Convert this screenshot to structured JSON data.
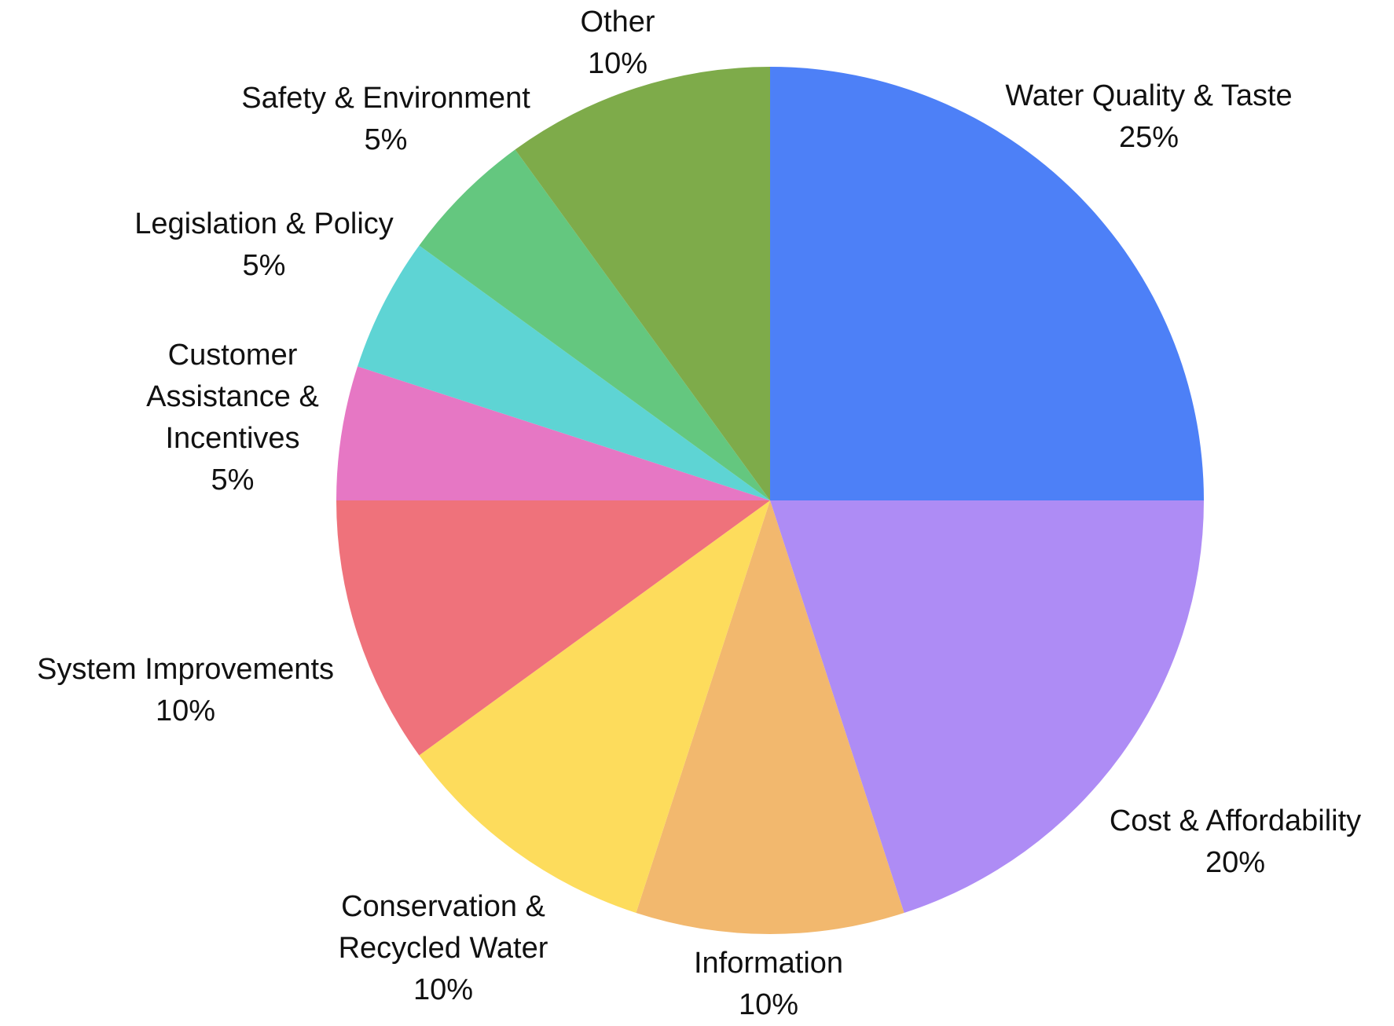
{
  "chart_data": {
    "type": "pie",
    "title": "",
    "start_angle_deg": 0,
    "direction": "clockwise",
    "slices": [
      {
        "label": "Water Quality & Taste",
        "label_lines": [
          "Water Quality & Taste"
        ],
        "value_label": "25%",
        "value": 25,
        "color": "#4D80F7"
      },
      {
        "label": "Cost & Affordability",
        "label_lines": [
          "Cost & Affordability"
        ],
        "value_label": "20%",
        "value": 20,
        "color": "#AE8CF5"
      },
      {
        "label": "Information",
        "label_lines": [
          "Information"
        ],
        "value_label": "10%",
        "value": 10,
        "color": "#F2B86E"
      },
      {
        "label": "Conservation & Recycled Water",
        "label_lines": [
          "Conservation &",
          "Recycled Water"
        ],
        "value_label": "10%",
        "value": 10,
        "color": "#FDDC5C"
      },
      {
        "label": "System Improvements",
        "label_lines": [
          "System Improvements"
        ],
        "value_label": "10%",
        "value": 10,
        "color": "#EF727B"
      },
      {
        "label": "Customer Assistance & Incentives",
        "label_lines": [
          "Customer",
          "Assistance &",
          "Incentives"
        ],
        "value_label": "5%",
        "value": 5,
        "color": "#E677C4"
      },
      {
        "label": "Legislation & Policy",
        "label_lines": [
          "Legislation & Policy"
        ],
        "value_label": "5%",
        "value": 5,
        "color": "#5ED4D4"
      },
      {
        "label": "Safety & Environment",
        "label_lines": [
          "Safety & Environment"
        ],
        "value_label": "5%",
        "value": 5,
        "color": "#64C77F"
      },
      {
        "label": "Other",
        "label_lines": [
          "Other"
        ],
        "value_label": "10%",
        "value": 10,
        "color": "#7EAB4A"
      }
    ]
  }
}
